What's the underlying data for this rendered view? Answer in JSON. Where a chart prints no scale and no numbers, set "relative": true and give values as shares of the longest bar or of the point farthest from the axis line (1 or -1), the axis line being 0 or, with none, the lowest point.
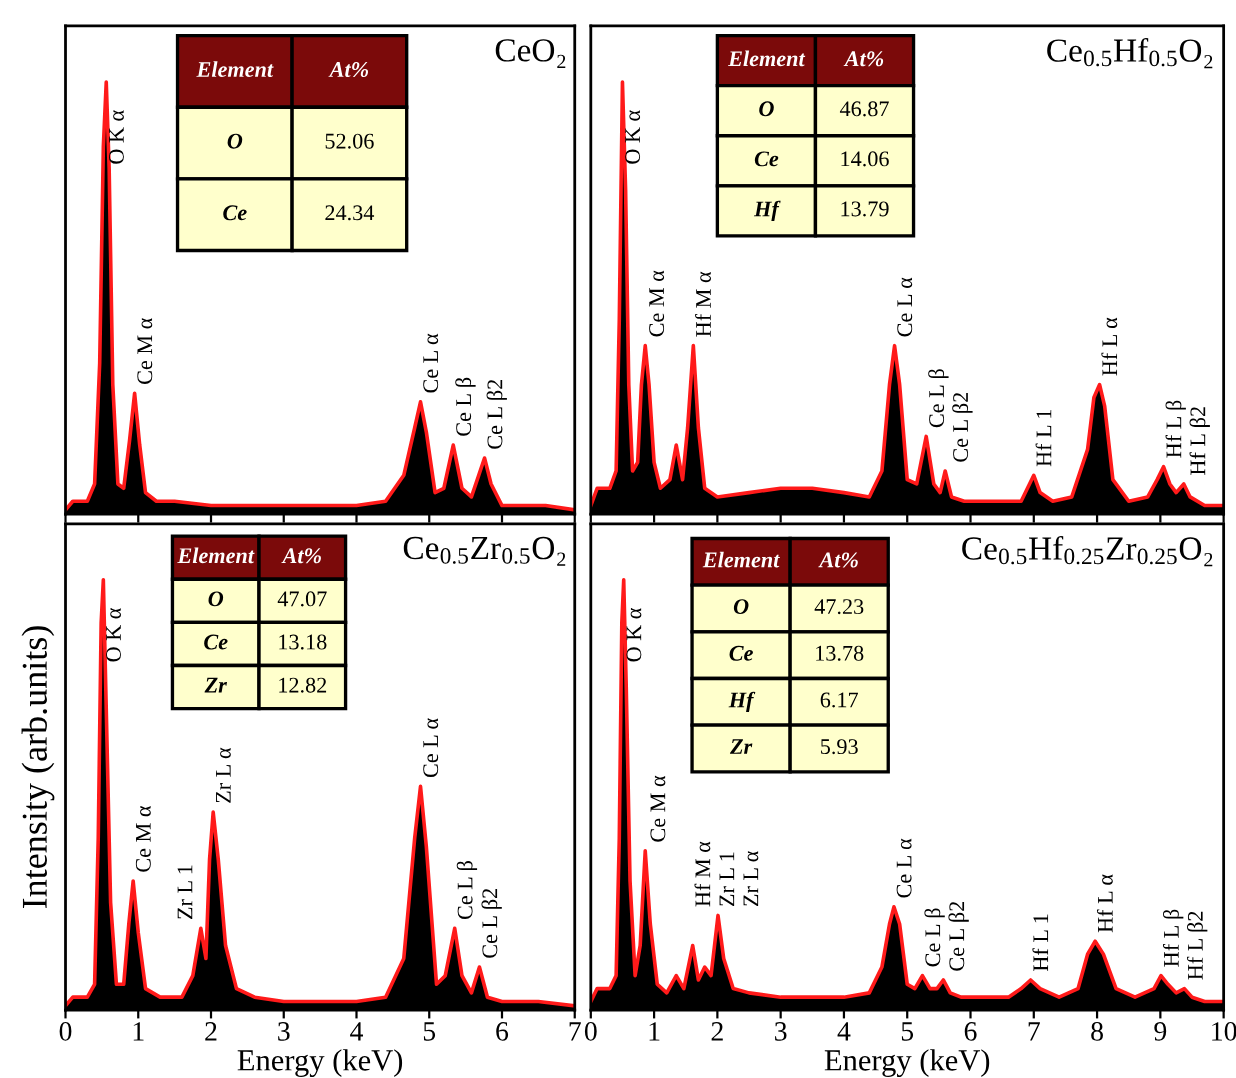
{
  "chart_data": [
    {
      "type": "area",
      "title": "CeO₂",
      "relative": true,
      "xlim": [
        0,
        7
      ],
      "xticks": [
        0,
        1,
        2,
        3,
        4,
        5,
        6,
        7
      ],
      "tick_labels": false,
      "x": [
        0,
        0.1,
        0.2,
        0.3,
        0.4,
        0.47,
        0.52,
        0.56,
        0.6,
        0.65,
        0.72,
        0.8,
        0.88,
        0.95,
        1.02,
        1.1,
        1.25,
        1.5,
        2.0,
        2.5,
        3.0,
        3.5,
        4.0,
        4.4,
        4.65,
        4.8,
        4.88,
        4.96,
        5.08,
        5.2,
        5.33,
        5.45,
        5.58,
        5.68,
        5.76,
        5.85,
        6.0,
        6.3,
        6.6,
        7.0
      ],
      "series": [
        {
          "color": "#ff1a1a",
          "values": [
            0.01,
            0.03,
            0.03,
            0.03,
            0.07,
            0.35,
            0.85,
            1.0,
            0.8,
            0.3,
            0.07,
            0.06,
            0.17,
            0.28,
            0.16,
            0.05,
            0.03,
            0.03,
            0.02,
            0.02,
            0.02,
            0.02,
            0.02,
            0.03,
            0.09,
            0.2,
            0.26,
            0.19,
            0.05,
            0.06,
            0.16,
            0.06,
            0.04,
            0.09,
            0.13,
            0.07,
            0.02,
            0.02,
            0.02,
            0.01
          ]
        }
      ],
      "annotations": [
        {
          "text": "O K α",
          "x": 0.56,
          "y": 1.0
        },
        {
          "text": "Ce M α",
          "x": 0.95,
          "y": 0.28
        },
        {
          "text": "Ce L α",
          "x": 4.88,
          "y": 0.26
        },
        {
          "text": "Ce L β",
          "x": 5.33,
          "y": 0.16
        },
        {
          "text": "Ce L β2",
          "x": 5.76,
          "y": 0.13
        },
        "Element",
        "At%",
        "O",
        "52.06",
        "Ce",
        "24.34"
      ]
    },
    {
      "type": "area",
      "title": "Ce$_{0.5}$Hf$_{0.5}$O₂",
      "relative": true,
      "xlim": [
        0,
        10
      ],
      "xticks": [
        0,
        1,
        2,
        3,
        4,
        5,
        6,
        7,
        8,
        9,
        10
      ],
      "tick_labels": false,
      "x": [
        0,
        0.1,
        0.2,
        0.3,
        0.4,
        0.45,
        0.5,
        0.55,
        0.6,
        0.66,
        0.74,
        0.8,
        0.86,
        0.92,
        1.0,
        1.1,
        1.25,
        1.35,
        1.45,
        1.53,
        1.62,
        1.7,
        1.8,
        2.0,
        2.5,
        3.0,
        3.5,
        4.0,
        4.4,
        4.6,
        4.72,
        4.8,
        4.88,
        5.0,
        5.15,
        5.3,
        5.42,
        5.52,
        5.6,
        5.7,
        5.9,
        6.3,
        6.8,
        6.9,
        7.0,
        7.1,
        7.3,
        7.6,
        7.85,
        7.95,
        8.04,
        8.12,
        8.25,
        8.5,
        8.8,
        8.95,
        9.05,
        9.15,
        9.25,
        9.37,
        9.47,
        9.7,
        10.0
      ],
      "series": [
        {
          "color": "#ff1a1a",
          "values": [
            0.02,
            0.06,
            0.06,
            0.06,
            0.1,
            0.45,
            1.0,
            0.75,
            0.3,
            0.1,
            0.12,
            0.3,
            0.39,
            0.3,
            0.12,
            0.06,
            0.08,
            0.16,
            0.08,
            0.2,
            0.39,
            0.2,
            0.06,
            0.04,
            0.05,
            0.06,
            0.06,
            0.05,
            0.04,
            0.1,
            0.3,
            0.39,
            0.3,
            0.08,
            0.07,
            0.18,
            0.07,
            0.05,
            0.1,
            0.04,
            0.03,
            0.03,
            0.03,
            0.06,
            0.09,
            0.05,
            0.03,
            0.04,
            0.15,
            0.27,
            0.3,
            0.25,
            0.08,
            0.03,
            0.04,
            0.08,
            0.11,
            0.07,
            0.05,
            0.07,
            0.04,
            0.02,
            0.02
          ]
        }
      ],
      "annotations": [
        {
          "text": "O K α",
          "x": 0.5,
          "y": 1.0
        },
        {
          "text": "Ce M α",
          "x": 0.86,
          "y": 0.39
        },
        {
          "text": "Hf M α",
          "x": 1.62,
          "y": 0.39
        },
        {
          "text": "Ce L α",
          "x": 4.8,
          "y": 0.39
        },
        {
          "text": "Ce L β",
          "x": 5.3,
          "y": 0.18
        },
        {
          "text": "Ce L β2",
          "x": 5.6,
          "y": 0.1
        },
        {
          "text": "Hf L 1",
          "x": 7.0,
          "y": 0.09
        },
        {
          "text": "Hf L α",
          "x": 8.04,
          "y": 0.3
        },
        {
          "text": "Hf L β",
          "x": 9.05,
          "y": 0.11
        },
        {
          "text": "Hf L β2",
          "x": 9.37,
          "y": 0.07
        },
        "Element",
        "At%",
        "O",
        "46.87",
        "Ce",
        "14.06",
        "Hf",
        "13.79"
      ]
    },
    {
      "type": "area",
      "title": "Ce$_{0.5}$Zr$_{0.5}$O₂",
      "xlabel": "Energy (keV)",
      "ylabel": "Intensity (arb.units)",
      "relative": true,
      "xlim": [
        0,
        7
      ],
      "xticks": [
        0,
        1,
        2,
        3,
        4,
        5,
        6,
        7
      ],
      "tick_labels": "x",
      "x": [
        0,
        0.1,
        0.2,
        0.3,
        0.4,
        0.45,
        0.49,
        0.52,
        0.56,
        0.62,
        0.7,
        0.8,
        0.87,
        0.93,
        1.0,
        1.1,
        1.3,
        1.6,
        1.75,
        1.86,
        1.93,
        1.98,
        2.03,
        2.1,
        2.2,
        2.35,
        2.6,
        3.0,
        3.5,
        4.0,
        4.4,
        4.65,
        4.8,
        4.88,
        4.96,
        5.1,
        5.22,
        5.35,
        5.45,
        5.58,
        5.69,
        5.8,
        6.0,
        6.5,
        7.0
      ],
      "series": [
        {
          "color": "#ff1a1a",
          "values": [
            0.01,
            0.03,
            0.03,
            0.03,
            0.06,
            0.4,
            0.9,
            1.0,
            0.7,
            0.25,
            0.06,
            0.06,
            0.2,
            0.3,
            0.18,
            0.05,
            0.03,
            0.03,
            0.08,
            0.19,
            0.12,
            0.35,
            0.46,
            0.35,
            0.15,
            0.05,
            0.03,
            0.02,
            0.02,
            0.02,
            0.03,
            0.12,
            0.4,
            0.52,
            0.38,
            0.06,
            0.08,
            0.19,
            0.08,
            0.04,
            0.1,
            0.03,
            0.02,
            0.02,
            0.01
          ]
        }
      ],
      "annotations": [
        {
          "text": "O K α",
          "x": 0.52,
          "y": 1.0
        },
        {
          "text": "Ce M α",
          "x": 0.93,
          "y": 0.3
        },
        {
          "text": "Zr L 1",
          "x": 1.86,
          "y": 0.19
        },
        {
          "text": "Zr L α",
          "x": 2.03,
          "y": 0.46
        },
        {
          "text": "Ce L α",
          "x": 4.88,
          "y": 0.52
        },
        {
          "text": "Ce L β",
          "x": 5.35,
          "y": 0.19
        },
        {
          "text": "Ce L β2",
          "x": 5.69,
          "y": 0.1
        },
        "Element",
        "At%",
        "O",
        "47.07",
        "Ce",
        "13.18",
        "Zr",
        "12.82"
      ]
    },
    {
      "type": "area",
      "title": "Ce$_{0.5}$Hf$_{0.25}$Zr$_{0.25}$O₂",
      "xlabel": "Energy (keV)",
      "relative": true,
      "xlim": [
        0,
        10
      ],
      "xticks": [
        0,
        1,
        2,
        3,
        4,
        5,
        6,
        7,
        8,
        9,
        10
      ],
      "tick_labels": "x",
      "x": [
        0,
        0.1,
        0.2,
        0.3,
        0.4,
        0.45,
        0.49,
        0.52,
        0.56,
        0.62,
        0.7,
        0.78,
        0.86,
        0.94,
        1.05,
        1.2,
        1.35,
        1.47,
        1.61,
        1.7,
        1.8,
        1.9,
        2.01,
        2.1,
        2.25,
        2.5,
        3.0,
        3.5,
        4.0,
        4.4,
        4.6,
        4.72,
        4.79,
        4.88,
        5.0,
        5.12,
        5.24,
        5.36,
        5.47,
        5.57,
        5.68,
        5.85,
        6.2,
        6.6,
        6.8,
        6.95,
        7.1,
        7.4,
        7.7,
        7.85,
        7.97,
        8.1,
        8.3,
        8.6,
        8.9,
        9.01,
        9.12,
        9.25,
        9.38,
        9.5,
        9.7,
        10.0
      ],
      "series": [
        {
          "color": "#ff1a1a",
          "values": [
            0.02,
            0.05,
            0.05,
            0.05,
            0.08,
            0.4,
            0.9,
            1.0,
            0.75,
            0.3,
            0.08,
            0.15,
            0.37,
            0.2,
            0.06,
            0.04,
            0.08,
            0.05,
            0.15,
            0.07,
            0.1,
            0.08,
            0.22,
            0.12,
            0.05,
            0.04,
            0.03,
            0.03,
            0.03,
            0.04,
            0.1,
            0.2,
            0.24,
            0.2,
            0.06,
            0.05,
            0.08,
            0.05,
            0.05,
            0.07,
            0.04,
            0.03,
            0.03,
            0.03,
            0.05,
            0.07,
            0.05,
            0.03,
            0.05,
            0.13,
            0.16,
            0.13,
            0.05,
            0.03,
            0.05,
            0.08,
            0.06,
            0.04,
            0.05,
            0.03,
            0.02,
            0.02
          ]
        }
      ],
      "annotations": [
        {
          "text": "O K α",
          "x": 0.52,
          "y": 1.0
        },
        {
          "text": "Ce M α",
          "x": 0.86,
          "y": 0.37
        },
        {
          "text": "Hf M α",
          "x": 1.61,
          "y": 0.15
        },
        {
          "text": "Zr L 1",
          "x": 1.8,
          "y": 0.1
        },
        {
          "text": "Zr L α",
          "x": 2.01,
          "y": 0.22
        },
        {
          "text": "Ce L α",
          "x": 4.79,
          "y": 0.24
        },
        {
          "text": "Ce L β",
          "x": 5.24,
          "y": 0.08
        },
        {
          "text": "Ce L β2",
          "x": 5.57,
          "y": 0.07
        },
        {
          "text": "Hf L 1",
          "x": 6.95,
          "y": 0.07
        },
        {
          "text": "Hf L α",
          "x": 7.97,
          "y": 0.16
        },
        {
          "text": "Hf L β",
          "x": 9.01,
          "y": 0.08
        },
        {
          "text": "Hf L β2",
          "x": 9.38,
          "y": 0.05
        },
        "Element",
        "At%",
        "O",
        "47.23",
        "Ce",
        "13.78",
        "Hf",
        "6.17",
        "Zr",
        "5.93"
      ]
    }
  ]
}
